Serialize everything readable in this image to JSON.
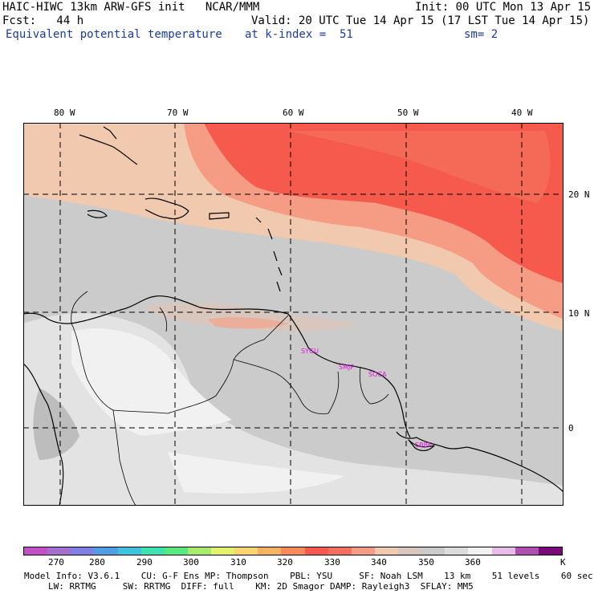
{
  "header": {
    "line1_left": "HAIC-HIWC 13km ARW-GFS init   NCAR/MMM",
    "line1_right": "Init: 00 UTC Mon 13 Apr 15",
    "line2_left": "Fcst:   44 h",
    "line2_right": "Valid: 20 UTC Tue 14 Apr 15 (17 LST Tue 14 Apr 15)",
    "line3_left": "Equivalent potential temperature",
    "line3_mid": "at k-index =  51",
    "line3_right": "sm= 2"
  },
  "axes": {
    "lon_labels": [
      "80 W",
      "70 W",
      "60 W",
      "50 W",
      "40 W"
    ],
    "lat_labels": [
      "20 N",
      "10 N",
      "0"
    ]
  },
  "stations": [
    "SYGU",
    "SMJP",
    "SOCA",
    "SBBE"
  ],
  "colorbar": {
    "colors": [
      "#c44fc7",
      "#a56fd0",
      "#7f7fe6",
      "#4f9ee6",
      "#3fc4e0",
      "#3fe3b0",
      "#58e97e",
      "#a6ec6a",
      "#e3f26a",
      "#f8d56f",
      "#f9b262",
      "#f8895a",
      "#f55a4d",
      "#f4705a",
      "#f79c84",
      "#f0c9ae",
      "#d9c7bd",
      "#cbcbcb",
      "#dcdcdc",
      "#f1f1f1",
      "#e8bce8",
      "#b04fb0",
      "#7a0a7a"
    ],
    "labels": [
      "270",
      "280",
      "290",
      "300",
      "310",
      "320",
      "330",
      "340",
      "350",
      "360"
    ],
    "unit": "K"
  },
  "footer": {
    "line1": "Model Info: V3.6.1    CU: G-F Ens MP: Thompson    PBL: YSU     SF: Noah LSM    13 km    51 levels    60 sec",
    "line2": "LW: RRTMG     SW: RRTMG  DIFF: full    KM: 2D Smagor DAMP: Rayleigh3  SFLAY: MM5"
  }
}
